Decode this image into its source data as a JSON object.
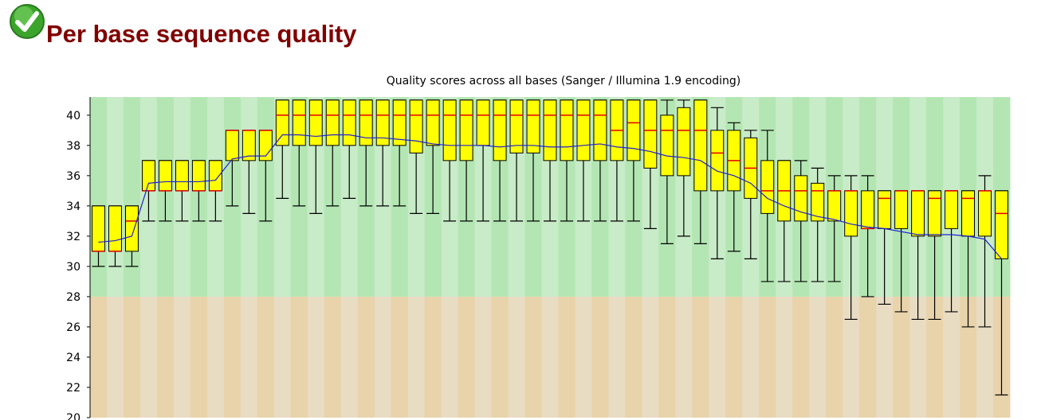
{
  "header": {
    "title": "Per base sequence quality"
  },
  "chart_data": {
    "type": "box",
    "title": "Quality scores across all bases (Sanger / Illumina 1.9 encoding)",
    "categories": [
      null,
      null,
      null,
      null,
      null,
      null,
      null,
      null,
      null,
      null,
      null,
      null,
      null,
      null,
      null,
      null,
      null,
      null,
      null,
      null,
      null,
      null,
      null,
      null,
      null,
      null,
      null,
      null,
      null,
      null,
      null,
      null,
      null,
      null,
      null,
      null,
      null,
      null,
      null,
      null,
      null,
      null,
      null,
      null,
      null,
      null,
      null,
      null,
      null,
      null,
      null,
      null,
      null,
      null,
      null
    ],
    "low": [
      30,
      30,
      30,
      33,
      33,
      33,
      33,
      33,
      34,
      33.5,
      33,
      34.5,
      34,
      33.5,
      34,
      34.5,
      34,
      34,
      34,
      33.5,
      33.5,
      33,
      33,
      33,
      33,
      33,
      33,
      33,
      33,
      33,
      33,
      33,
      33,
      32.5,
      31.5,
      32,
      31.5,
      30.5,
      31,
      30.5,
      29,
      29,
      29,
      29,
      29,
      26.5,
      28,
      27.5,
      27,
      26.5,
      26.5,
      27,
      26,
      26,
      21.5
    ],
    "q1": [
      31,
      31,
      31,
      35,
      35,
      35,
      35,
      35,
      37,
      37,
      37,
      38,
      38,
      38,
      38,
      38,
      38,
      38,
      38,
      37.5,
      38,
      37,
      37,
      38,
      37,
      37.5,
      37.5,
      37,
      37,
      37,
      37,
      37,
      37,
      36.5,
      36,
      36,
      35,
      35,
      35,
      34.5,
      33.5,
      33,
      33,
      33,
      33,
      32,
      32.5,
      32.5,
      32.5,
      32,
      32,
      32.5,
      32,
      32,
      30.5
    ],
    "median": [
      31,
      31,
      33,
      35,
      35,
      35,
      35,
      35,
      39,
      39,
      39,
      40,
      40,
      40,
      40,
      40,
      40,
      40,
      40,
      40,
      40,
      40,
      40,
      40,
      40,
      40,
      40,
      40,
      40,
      40,
      40,
      39,
      39.5,
      39,
      39,
      39,
      39,
      37.5,
      37,
      36.5,
      35,
      35,
      35,
      35,
      35,
      35,
      32.5,
      34.5,
      35,
      35,
      34.5,
      35,
      34.5,
      35,
      33.5
    ],
    "q3": [
      34,
      34,
      34,
      37,
      37,
      37,
      37,
      37,
      39,
      39,
      39,
      41,
      41,
      41,
      41,
      41,
      41,
      41,
      41,
      41,
      41,
      41,
      41,
      41,
      41,
      41,
      41,
      41,
      41,
      41,
      41,
      41,
      41,
      41,
      40,
      40.5,
      41,
      39,
      39,
      38.5,
      37,
      37,
      36,
      35.5,
      35,
      35,
      35,
      35,
      35,
      35,
      35,
      35,
      35,
      35,
      35
    ],
    "high": [
      34,
      34,
      34,
      37,
      37,
      37,
      37,
      37,
      39,
      39,
      39,
      41,
      41,
      41,
      41,
      41,
      41,
      41,
      41,
      41,
      41,
      41,
      41,
      41,
      41,
      41,
      41,
      41,
      41,
      41,
      41,
      41,
      41,
      41,
      41,
      41,
      41,
      40.5,
      39.5,
      39,
      39,
      37,
      37,
      36.5,
      36,
      36,
      36,
      35,
      35,
      35,
      35,
      35,
      35,
      36,
      35
    ],
    "mean": [
      31.6,
      31.7,
      32,
      35.5,
      35.6,
      35.6,
      35.6,
      35.7,
      37.1,
      37.3,
      37.3,
      38.7,
      38.7,
      38.6,
      38.7,
      38.7,
      38.5,
      38.5,
      38.4,
      38.3,
      38.1,
      38,
      38,
      38,
      37.9,
      38,
      38,
      37.9,
      37.9,
      38,
      38.1,
      37.9,
      37.8,
      37.6,
      37.3,
      37.2,
      37,
      36.3,
      36,
      35.5,
      34.5,
      34,
      33.6,
      33.3,
      33.1,
      32.8,
      32.6,
      32.5,
      32.3,
      32.1,
      32.1,
      32.1,
      32,
      31.8,
      30.5
    ],
    "box_color": "#ffff00",
    "median_color": "#e00000",
    "mean_color": "#2020d0",
    "zones": [
      {
        "from": 28,
        "to": 41.2,
        "colors": [
          "#b3e6b3",
          "#c8ebc8"
        ]
      },
      {
        "from": 20,
        "to": 28,
        "colors": [
          "#e8d3ab",
          "#e8dcc3"
        ]
      }
    ],
    "ylim": [
      20,
      41.2
    ],
    "yticks": [
      20,
      22,
      24,
      26,
      28,
      30,
      32,
      34,
      36,
      38,
      40
    ]
  }
}
